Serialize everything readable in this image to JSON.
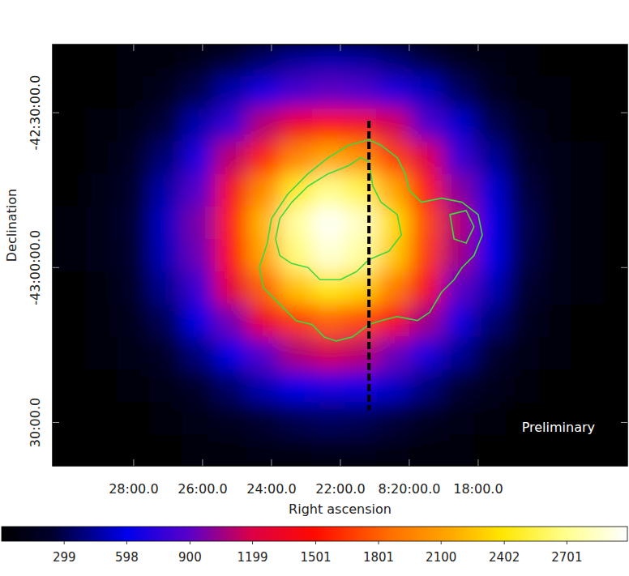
{
  "chart_data": {
    "type": "heatmap",
    "xlabel": "Right ascension",
    "ylabel": "Declination",
    "xlim": [
      30.35,
      13.67
    ],
    "ylim": [
      -43.64,
      -42.28
    ],
    "xticks": [
      {
        "value": 28,
        "label": "28:00.0"
      },
      {
        "value": 26,
        "label": "26:00.0"
      },
      {
        "value": 24,
        "label": "24:00.0"
      },
      {
        "value": 22,
        "label": "22:00.0"
      },
      {
        "value": 20,
        "label": "8:20:00.0"
      },
      {
        "value": 18,
        "label": "18:00.0"
      }
    ],
    "yticks": [
      {
        "value": -42.5,
        "label": "-42:30:00.0"
      },
      {
        "value": -43,
        "label": "-43:00:00.0"
      },
      {
        "value": -43.5,
        "label": "30:00.0"
      }
    ],
    "grid": false,
    "x": [
      29.88,
      28.94,
      28.0,
      27.06,
      26.12,
      25.17,
      24.23,
      23.29,
      22.35,
      21.41,
      20.47,
      19.53,
      18.59,
      17.65,
      16.7,
      15.76,
      14.82,
      13.88
    ],
    "y": [
      -42.329,
      -42.434,
      -42.539,
      -42.645,
      -42.75,
      -42.855,
      -42.961,
      -43.066,
      -43.171,
      -43.276,
      -43.382,
      -43.487,
      -43.592
    ],
    "z": [
      [
        6,
        17,
        41,
        85,
        157,
        254,
        359,
        446,
        484,
        461,
        384,
        280,
        179,
        101,
        49,
        21,
        8,
        3
      ],
      [
        12,
        32,
        76,
        159,
        294,
        475,
        672,
        833,
        905,
        862,
        718,
        525,
        335,
        188,
        92,
        40,
        15,
        5
      ],
      [
        19,
        52,
        124,
        262,
        483,
        779,
        1103,
        1367,
        1485,
        1413,
        1178,
        860,
        550,
        309,
        152,
        65,
        25,
        8
      ],
      [
        27,
        75,
        179,
        376,
        695,
        1120,
        1586,
        1967,
        2136,
        2033,
        1695,
        1238,
        791,
        445,
        218,
        94,
        35,
        12
      ],
      [
        34,
        94,
        226,
        475,
        877,
        1413,
        2001,
        2481,
        2694,
        2565,
        2139,
        1562,
        998,
        561,
        275,
        118,
        45,
        15
      ],
      [
        38,
        104,
        249,
        524,
        968,
        1561,
        2210,
        2740,
        2975,
        2832,
        2362,
        1724,
        1102,
        619,
        304,
        131,
        49,
        16
      ],
      [
        37,
        101,
        241,
        507,
        937,
        1510,
        2139,
        2652,
        2879,
        2741,
        2286,
        1669,
        1066,
        600,
        294,
        127,
        48,
        16
      ],
      [
        31,
        85,
        204,
        430,
        794,
        1280,
        1813,
        2247,
        2440,
        2323,
        1937,
        1414,
        904,
        508,
        249,
        107,
        41,
        13
      ],
      [
        23,
        63,
        152,
        319,
        590,
        951,
        1347,
        1670,
        1813,
        1726,
        1439,
        1051,
        672,
        377,
        185,
        80,
        30,
        10
      ],
      [
        15,
        41,
        99,
        208,
        384,
        619,
        876,
        1087,
        1180,
        1123,
        937,
        684,
        437,
        246,
        120,
        52,
        20,
        6
      ],
      [
        9,
        23,
        56,
        118,
        219,
        353,
        499,
        619,
        672,
        640,
        533,
        390,
        249,
        140,
        69,
        30,
        11,
        4
      ],
      [
        4,
        12,
        28,
        59,
        109,
        175,
        248,
        308,
        335,
        318,
        266,
        194,
        124,
        70,
        34,
        15,
        6,
        2
      ],
      [
        2,
        5,
        12,
        26,
        48,
        77,
        109,
        135,
        146,
        139,
        116,
        85,
        54,
        30,
        15,
        6,
        2,
        1
      ]
    ],
    "colorbar": {
      "range": [
        0,
        2990
      ],
      "ticks": [
        299,
        598,
        900,
        1199,
        1501,
        1801,
        2100,
        2402,
        2701
      ]
    },
    "contours": [
      {
        "color": "#3fd63f",
        "x": [
          21.17,
          20.82,
          20.35,
          20.12,
          20.0,
          19.65,
          19.06,
          18.47,
          18.0,
          17.88,
          18.12,
          18.47,
          18.7,
          19.06,
          19.41,
          19.76,
          20.35,
          20.82,
          21.17,
          21.65,
          22.12,
          22.47,
          22.82,
          23.29,
          23.76,
          24.23,
          24.35,
          24.12,
          24.0,
          23.53,
          22.94,
          22.35,
          21.76
        ],
        "y": [
          -42.587,
          -42.605,
          -42.645,
          -42.697,
          -42.75,
          -42.789,
          -42.776,
          -42.789,
          -42.829,
          -42.895,
          -42.961,
          -43.0,
          -43.039,
          -43.079,
          -43.145,
          -43.171,
          -43.158,
          -43.171,
          -43.184,
          -43.224,
          -43.237,
          -43.224,
          -43.184,
          -43.171,
          -43.118,
          -43.066,
          -43.0,
          -42.921,
          -42.842,
          -42.763,
          -42.697,
          -42.645,
          -42.605
        ]
      },
      {
        "color": "#3fd63f",
        "x": [
          23.88,
          23.76,
          23.41,
          22.94,
          22.35,
          21.76,
          21.41,
          21.17,
          21.06,
          20.82,
          20.35,
          20.23,
          20.59,
          21.17,
          21.53,
          22.0,
          22.59,
          22.94,
          23.41,
          23.76
        ],
        "y": [
          -42.908,
          -42.842,
          -42.789,
          -42.737,
          -42.697,
          -42.671,
          -42.645,
          -42.658,
          -42.737,
          -42.789,
          -42.829,
          -42.895,
          -42.947,
          -42.974,
          -43.013,
          -43.039,
          -43.039,
          -43.0,
          -42.987,
          -42.961
        ]
      },
      {
        "color": "#3fd63f",
        "x": [
          18.82,
          18.35,
          18.12,
          18.35,
          18.7
        ],
        "y": [
          -42.829,
          -42.816,
          -42.868,
          -42.921,
          -42.908
        ]
      }
    ],
    "profile_line": {
      "color": "#000000",
      "line_style": "dashed",
      "x": [
        21.17,
        21.17
      ],
      "y": [
        -42.526,
        -43.461
      ]
    },
    "annotations": [
      {
        "text": "Preliminary",
        "color": "#ffffff"
      }
    ]
  }
}
